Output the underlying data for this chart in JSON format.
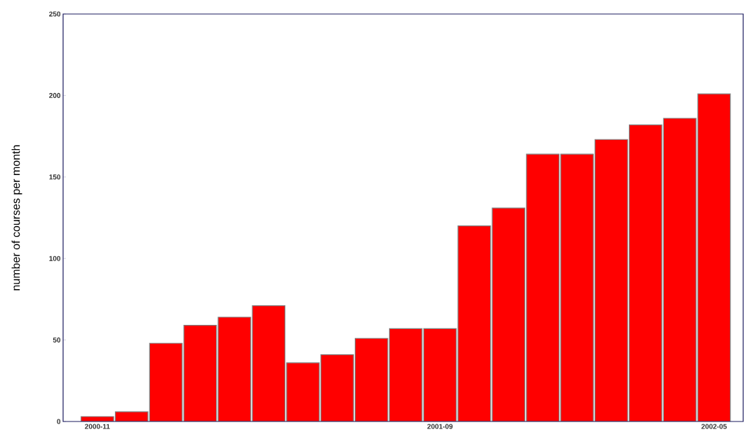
{
  "chart_data": {
    "type": "bar",
    "ylabel": "number of courses per month",
    "categories": [
      "2000-11",
      null,
      null,
      null,
      null,
      null,
      null,
      null,
      null,
      null,
      "2001-09",
      null,
      null,
      null,
      null,
      null,
      null,
      null,
      "2002-05"
    ],
    "values": [
      3,
      6,
      48,
      59,
      64,
      71,
      36,
      41,
      51,
      57,
      57,
      120,
      131,
      164,
      164,
      173,
      182,
      186,
      201
    ],
    "color": "#ff0000",
    "ylim": [
      0,
      250
    ],
    "yticks": [
      0,
      50,
      100,
      150,
      200,
      250
    ],
    "grid": false
  }
}
